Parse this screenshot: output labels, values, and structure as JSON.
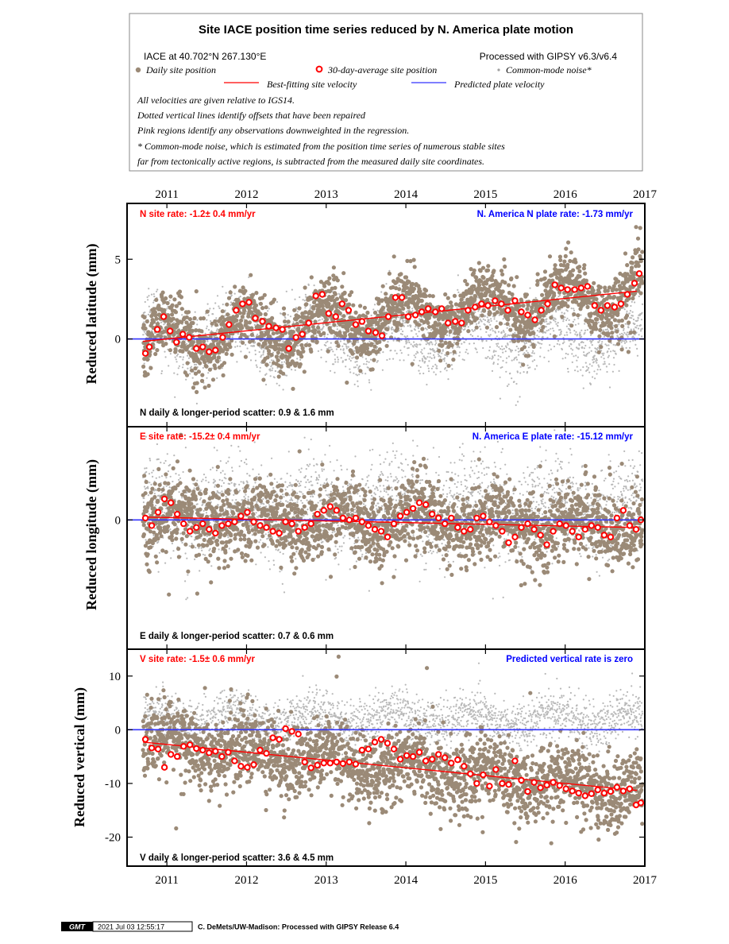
{
  "header": {
    "title": "Site IACE position time series reduced by N. America plate motion",
    "site_location": "IACE at 40.702°N 267.130°E",
    "processed": "Processed with GIPSY v6.3/v6.4",
    "legend_daily": "Daily site position",
    "legend_avg": "30-day-average site position",
    "legend_cm": "Common-mode noise*",
    "legend_fit": "Best-fitting site velocity",
    "legend_plate": "Predicted plate velocity",
    "note1": "All velocities are given relative to IGS14.",
    "note2": "Dotted vertical lines identify offsets that have been repaired",
    "note3": "Pink regions identify any observations downweighted in the regression.",
    "note4": "* Common-mode noise, which is estimated from the position time series of numerous stable sites",
    "note5": "far from tectonically active regions, is subtracted from the measured daily site coordinates."
  },
  "colors": {
    "daily": "#9b8a77",
    "common_mode": "#b8b8b8",
    "average": "#ff0000",
    "fit": "#ff0000",
    "plate": "#3333ff"
  },
  "footer": {
    "logo": "GMT",
    "timestamp": "2021 Jul 03 12:55:17",
    "credit": "C. DeMets/UW-Madison: Processed with GIPSY Release 6.4"
  },
  "chart_data": [
    {
      "type": "scatter",
      "component": "N",
      "ylabel": "Reduced latitude (mm)",
      "ylim": [
        -5.5,
        8.5
      ],
      "yticks": [
        {
          "v": 5,
          "label": "5"
        },
        {
          "v": 0,
          "label": "0"
        }
      ],
      "xlim": [
        2010.5,
        2017.0
      ],
      "xticks": [
        {
          "v": 2011.0,
          "label": "2011"
        },
        {
          "v": 2012.0,
          "label": "2012"
        },
        {
          "v": 2013.0,
          "label": "2013"
        },
        {
          "v": 2014.0,
          "label": "2014"
        },
        {
          "v": 2015.0,
          "label": "2015"
        },
        {
          "v": 2016.0,
          "label": "2016"
        },
        {
          "v": 2017.0,
          "label": "2017"
        }
      ],
      "site_rate": "N site rate:  -1.2± 0.4 mm/yr",
      "plate_rate": "N. America N plate rate: -1.73 mm/yr",
      "scatter_text": "N daily & longer-period scatter:   0.9 &   1.6 mm",
      "fit_line": [
        [
          2010.7,
          -0.15
        ],
        [
          2016.9,
          3.0
        ]
      ],
      "plate_line_y": 0,
      "averages": [
        [
          2010.73,
          -0.9
        ],
        [
          2010.78,
          -0.5
        ],
        [
          2010.88,
          0.6
        ],
        [
          2010.96,
          1.4
        ],
        [
          2011.04,
          0.5
        ],
        [
          2011.12,
          -0.2
        ],
        [
          2011.2,
          0.3
        ],
        [
          2011.28,
          0.1
        ],
        [
          2011.37,
          -0.6
        ],
        [
          2011.45,
          -0.5
        ],
        [
          2011.53,
          -0.8
        ],
        [
          2011.61,
          -0.7
        ],
        [
          2011.7,
          0.1
        ],
        [
          2011.78,
          0.9
        ],
        [
          2011.87,
          1.8
        ],
        [
          2011.95,
          2.2
        ],
        [
          2012.03,
          2.3
        ],
        [
          2012.11,
          1.3
        ],
        [
          2012.2,
          1.1
        ],
        [
          2012.28,
          0.8
        ],
        [
          2012.37,
          0.7
        ],
        [
          2012.45,
          0.6
        ],
        [
          2012.53,
          -0.6
        ],
        [
          2012.62,
          0.1
        ],
        [
          2012.7,
          0.3
        ],
        [
          2012.78,
          1.0
        ],
        [
          2012.87,
          2.7
        ],
        [
          2012.95,
          2.8
        ],
        [
          2013.03,
          1.6
        ],
        [
          2013.12,
          1.4
        ],
        [
          2013.2,
          2.2
        ],
        [
          2013.28,
          1.8
        ],
        [
          2013.37,
          0.9
        ],
        [
          2013.45,
          1.1
        ],
        [
          2013.53,
          0.5
        ],
        [
          2013.62,
          0.4
        ],
        [
          2013.7,
          0.2
        ],
        [
          2013.78,
          1.4
        ],
        [
          2013.87,
          2.6
        ],
        [
          2013.95,
          2.6
        ],
        [
          2014.03,
          1.4
        ],
        [
          2014.12,
          1.5
        ],
        [
          2014.2,
          1.7
        ],
        [
          2014.28,
          1.9
        ],
        [
          2014.37,
          1.7
        ],
        [
          2014.45,
          1.9
        ],
        [
          2014.53,
          1.0
        ],
        [
          2014.62,
          1.1
        ],
        [
          2014.7,
          1.0
        ],
        [
          2014.78,
          1.8
        ],
        [
          2014.87,
          2.0
        ],
        [
          2014.95,
          2.2
        ],
        [
          2015.03,
          2.1
        ],
        [
          2015.12,
          2.4
        ],
        [
          2015.2,
          2.2
        ],
        [
          2015.28,
          1.8
        ],
        [
          2015.37,
          2.4
        ],
        [
          2015.45,
          1.7
        ],
        [
          2015.53,
          1.5
        ],
        [
          2015.62,
          1.2
        ],
        [
          2015.7,
          1.8
        ],
        [
          2015.78,
          2.2
        ],
        [
          2015.87,
          3.4
        ],
        [
          2015.95,
          3.2
        ],
        [
          2016.03,
          3.1
        ],
        [
          2016.12,
          3.1
        ],
        [
          2016.2,
          3.2
        ],
        [
          2016.28,
          3.3
        ],
        [
          2016.37,
          2.1
        ],
        [
          2016.45,
          1.8
        ],
        [
          2016.53,
          2.1
        ],
        [
          2016.62,
          2.0
        ],
        [
          2016.7,
          2.2
        ],
        [
          2016.78,
          2.8
        ],
        [
          2016.87,
          3.5
        ],
        [
          2016.93,
          4.1
        ]
      ],
      "daily_model": {
        "amp": 1.2,
        "phase": 0.25,
        "offset": -0.15,
        "slope": 0.508,
        "t0": 2010.7,
        "noise": 0.95,
        "outlier_scale": 2.6
      },
      "common_mode_model": {
        "amp": 0.9,
        "noise": 1.1,
        "mean": 0.2
      }
    },
    {
      "type": "scatter",
      "component": "E",
      "ylabel": "Reduced longitude (mm)",
      "ylim": [
        -6.8,
        4.9
      ],
      "yticks": [
        {
          "v": 0,
          "label": "0"
        }
      ],
      "xlim": [
        2010.5,
        2017.0
      ],
      "xticks": [],
      "site_rate": "E site rate:  -15.2± 0.4 mm/yr",
      "plate_rate": "N. America E plate rate: -15.12 mm/yr",
      "scatter_text": "E daily & longer-period scatter:   0.7 &   0.6 mm",
      "fit_line": [
        [
          2010.7,
          0.15
        ],
        [
          2016.9,
          -0.4
        ]
      ],
      "plate_line_y": 0,
      "averages": [
        [
          2010.73,
          0.1
        ],
        [
          2010.81,
          -0.3
        ],
        [
          2010.89,
          0.4
        ],
        [
          2010.97,
          1.1
        ],
        [
          2011.05,
          0.9
        ],
        [
          2011.13,
          0.3
        ],
        [
          2011.21,
          -0.2
        ],
        [
          2011.29,
          -0.6
        ],
        [
          2011.37,
          -0.4
        ],
        [
          2011.45,
          -0.2
        ],
        [
          2011.53,
          -0.5
        ],
        [
          2011.61,
          -0.7
        ],
        [
          2011.69,
          -0.3
        ],
        [
          2011.77,
          -0.2
        ],
        [
          2011.85,
          -0.1
        ],
        [
          2011.93,
          0.2
        ],
        [
          2012.01,
          0.4
        ],
        [
          2012.09,
          -0.1
        ],
        [
          2012.17,
          -0.3
        ],
        [
          2012.25,
          -0.4
        ],
        [
          2012.33,
          -0.6
        ],
        [
          2012.41,
          -0.7
        ],
        [
          2012.49,
          -0.1
        ],
        [
          2012.57,
          -0.2
        ],
        [
          2012.65,
          -0.6
        ],
        [
          2012.73,
          -0.4
        ],
        [
          2012.81,
          -0.2
        ],
        [
          2012.89,
          0.3
        ],
        [
          2012.97,
          0.5
        ],
        [
          2013.05,
          0.7
        ],
        [
          2013.13,
          0.5
        ],
        [
          2013.21,
          0.1
        ],
        [
          2013.29,
          0.0
        ],
        [
          2013.37,
          0.1
        ],
        [
          2013.45,
          -0.1
        ],
        [
          2013.53,
          -0.3
        ],
        [
          2013.61,
          -0.5
        ],
        [
          2013.69,
          -0.6
        ],
        [
          2013.77,
          -0.9
        ],
        [
          2013.85,
          -0.2
        ],
        [
          2013.93,
          0.2
        ],
        [
          2014.01,
          0.4
        ],
        [
          2014.09,
          0.6
        ],
        [
          2014.17,
          0.9
        ],
        [
          2014.25,
          0.8
        ],
        [
          2014.33,
          0.3
        ],
        [
          2014.41,
          0.1
        ],
        [
          2014.49,
          -0.2
        ],
        [
          2014.57,
          0.1
        ],
        [
          2014.65,
          -0.4
        ],
        [
          2014.73,
          -0.6
        ],
        [
          2014.81,
          -0.5
        ],
        [
          2014.89,
          0.1
        ],
        [
          2014.97,
          0.2
        ],
        [
          2015.05,
          -0.1
        ],
        [
          2015.13,
          -0.3
        ],
        [
          2015.21,
          -0.6
        ],
        [
          2015.29,
          -1.2
        ],
        [
          2015.37,
          -0.9
        ],
        [
          2015.45,
          -0.4
        ],
        [
          2015.53,
          -0.2
        ],
        [
          2015.61,
          -0.5
        ],
        [
          2015.69,
          -0.8
        ],
        [
          2015.77,
          -1.3
        ],
        [
          2015.85,
          -0.6
        ],
        [
          2015.93,
          -0.2
        ],
        [
          2016.01,
          -0.3
        ],
        [
          2016.09,
          -0.6
        ],
        [
          2016.17,
          -0.9
        ],
        [
          2016.25,
          -0.5
        ],
        [
          2016.33,
          -0.3
        ],
        [
          2016.41,
          -0.4
        ],
        [
          2016.49,
          -0.8
        ],
        [
          2016.57,
          -0.9
        ],
        [
          2016.65,
          0.1
        ],
        [
          2016.73,
          0.5
        ],
        [
          2016.81,
          -0.3
        ],
        [
          2016.89,
          -0.5
        ],
        [
          2016.95,
          0.0
        ]
      ],
      "daily_model": {
        "amp": 0.5,
        "phase": 0.1,
        "offset": 0.15,
        "slope": -0.089,
        "t0": 2010.7,
        "noise": 0.95,
        "outlier_scale": 2.8
      },
      "common_mode_model": {
        "amp": 0.6,
        "noise": 1.3,
        "mean": 0.6
      }
    },
    {
      "type": "scatter",
      "component": "V",
      "ylabel": "Reduced vertical (mm)",
      "ylim": [
        -25.4,
        15.0
      ],
      "yticks": [
        {
          "v": 10,
          "label": "10"
        },
        {
          "v": 0,
          "label": "0"
        },
        {
          "v": -10,
          "label": "-10"
        },
        {
          "v": -20,
          "label": "-20"
        }
      ],
      "xlim": [
        2010.5,
        2017.0
      ],
      "xticks": [
        {
          "v": 2011.0,
          "label": "2011"
        },
        {
          "v": 2012.0,
          "label": "2012"
        },
        {
          "v": 2013.0,
          "label": "2013"
        },
        {
          "v": 2014.0,
          "label": "2014"
        },
        {
          "v": 2015.0,
          "label": "2015"
        },
        {
          "v": 2016.0,
          "label": "2016"
        },
        {
          "v": 2017.0,
          "label": "2017"
        }
      ],
      "site_rate": "V site rate:  -1.5± 0.6 mm/yr",
      "plate_rate": "Predicted vertical rate is zero",
      "scatter_text": "V daily & longer-period scatter:   3.6 &   4.5 mm",
      "fit_line": [
        [
          2010.7,
          -2.3
        ],
        [
          2016.9,
          -11.3
        ]
      ],
      "plate_line_y": 0,
      "averages": [
        [
          2010.73,
          -1.8
        ],
        [
          2010.81,
          -3.4
        ],
        [
          2010.89,
          -3.6
        ],
        [
          2010.97,
          -7.0
        ],
        [
          2011.05,
          -4.6
        ],
        [
          2011.13,
          -5.0
        ],
        [
          2011.21,
          -3.1
        ],
        [
          2011.29,
          -2.8
        ],
        [
          2011.37,
          -3.5
        ],
        [
          2011.45,
          -3.8
        ],
        [
          2011.53,
          -4.3
        ],
        [
          2011.61,
          -4.0
        ],
        [
          2011.69,
          -5.0
        ],
        [
          2011.77,
          -4.2
        ],
        [
          2011.85,
          -5.8
        ],
        [
          2011.93,
          -6.8
        ],
        [
          2012.01,
          -7.0
        ],
        [
          2012.09,
          -6.5
        ],
        [
          2012.17,
          -3.8
        ],
        [
          2012.25,
          -4.4
        ],
        [
          2012.33,
          -1.5
        ],
        [
          2012.41,
          -1.8
        ],
        [
          2012.49,
          0.2
        ],
        [
          2012.57,
          -0.3
        ],
        [
          2012.65,
          -0.8
        ],
        [
          2012.73,
          -6.0
        ],
        [
          2012.81,
          -7.1
        ],
        [
          2012.89,
          -6.6
        ],
        [
          2012.97,
          -6.2
        ],
        [
          2013.05,
          -6.2
        ],
        [
          2013.13,
          -6.0
        ],
        [
          2013.21,
          -6.3
        ],
        [
          2013.29,
          -6.0
        ],
        [
          2013.37,
          -6.4
        ],
        [
          2013.45,
          -3.8
        ],
        [
          2013.53,
          -3.6
        ],
        [
          2013.61,
          -2.3
        ],
        [
          2013.69,
          -1.8
        ],
        [
          2013.77,
          -2.5
        ],
        [
          2013.85,
          -3.6
        ],
        [
          2013.93,
          -5.5
        ],
        [
          2014.01,
          -4.8
        ],
        [
          2014.09,
          -5.0
        ],
        [
          2014.17,
          -4.2
        ],
        [
          2014.25,
          -5.8
        ],
        [
          2014.33,
          -5.5
        ],
        [
          2014.41,
          -4.6
        ],
        [
          2014.49,
          -5.2
        ],
        [
          2014.57,
          -6.2
        ],
        [
          2014.65,
          -5.6
        ],
        [
          2014.73,
          -6.8
        ],
        [
          2014.81,
          -8.2
        ],
        [
          2014.89,
          -10.0
        ],
        [
          2014.97,
          -8.4
        ],
        [
          2015.05,
          -10.5
        ],
        [
          2015.13,
          -7.4
        ],
        [
          2015.21,
          -10.0
        ],
        [
          2015.29,
          -10.2
        ],
        [
          2015.37,
          -5.8
        ],
        [
          2015.45,
          -9.4
        ],
        [
          2015.53,
          -11.5
        ],
        [
          2015.61,
          -9.8
        ],
        [
          2015.69,
          -10.8
        ],
        [
          2015.77,
          -10.3
        ],
        [
          2015.85,
          -9.8
        ],
        [
          2015.93,
          -10.4
        ],
        [
          2016.01,
          -11.0
        ],
        [
          2016.09,
          -11.4
        ],
        [
          2016.17,
          -11.8
        ],
        [
          2016.25,
          -12.3
        ],
        [
          2016.33,
          -11.9
        ],
        [
          2016.41,
          -11.2
        ],
        [
          2016.49,
          -11.8
        ],
        [
          2016.57,
          -11.5
        ],
        [
          2016.65,
          -10.7
        ],
        [
          2016.73,
          -11.4
        ],
        [
          2016.81,
          -11.0
        ],
        [
          2016.89,
          -14.0
        ],
        [
          2016.95,
          -13.6
        ]
      ],
      "daily_model": {
        "amp": 1.8,
        "phase": 0.2,
        "offset": -2.3,
        "slope": -1.45,
        "t0": 2010.7,
        "noise": 3.3,
        "outlier_scale": 2.5
      },
      "common_mode_model": {
        "amp": 1.5,
        "noise": 2.2,
        "mean": 2.0
      }
    }
  ]
}
